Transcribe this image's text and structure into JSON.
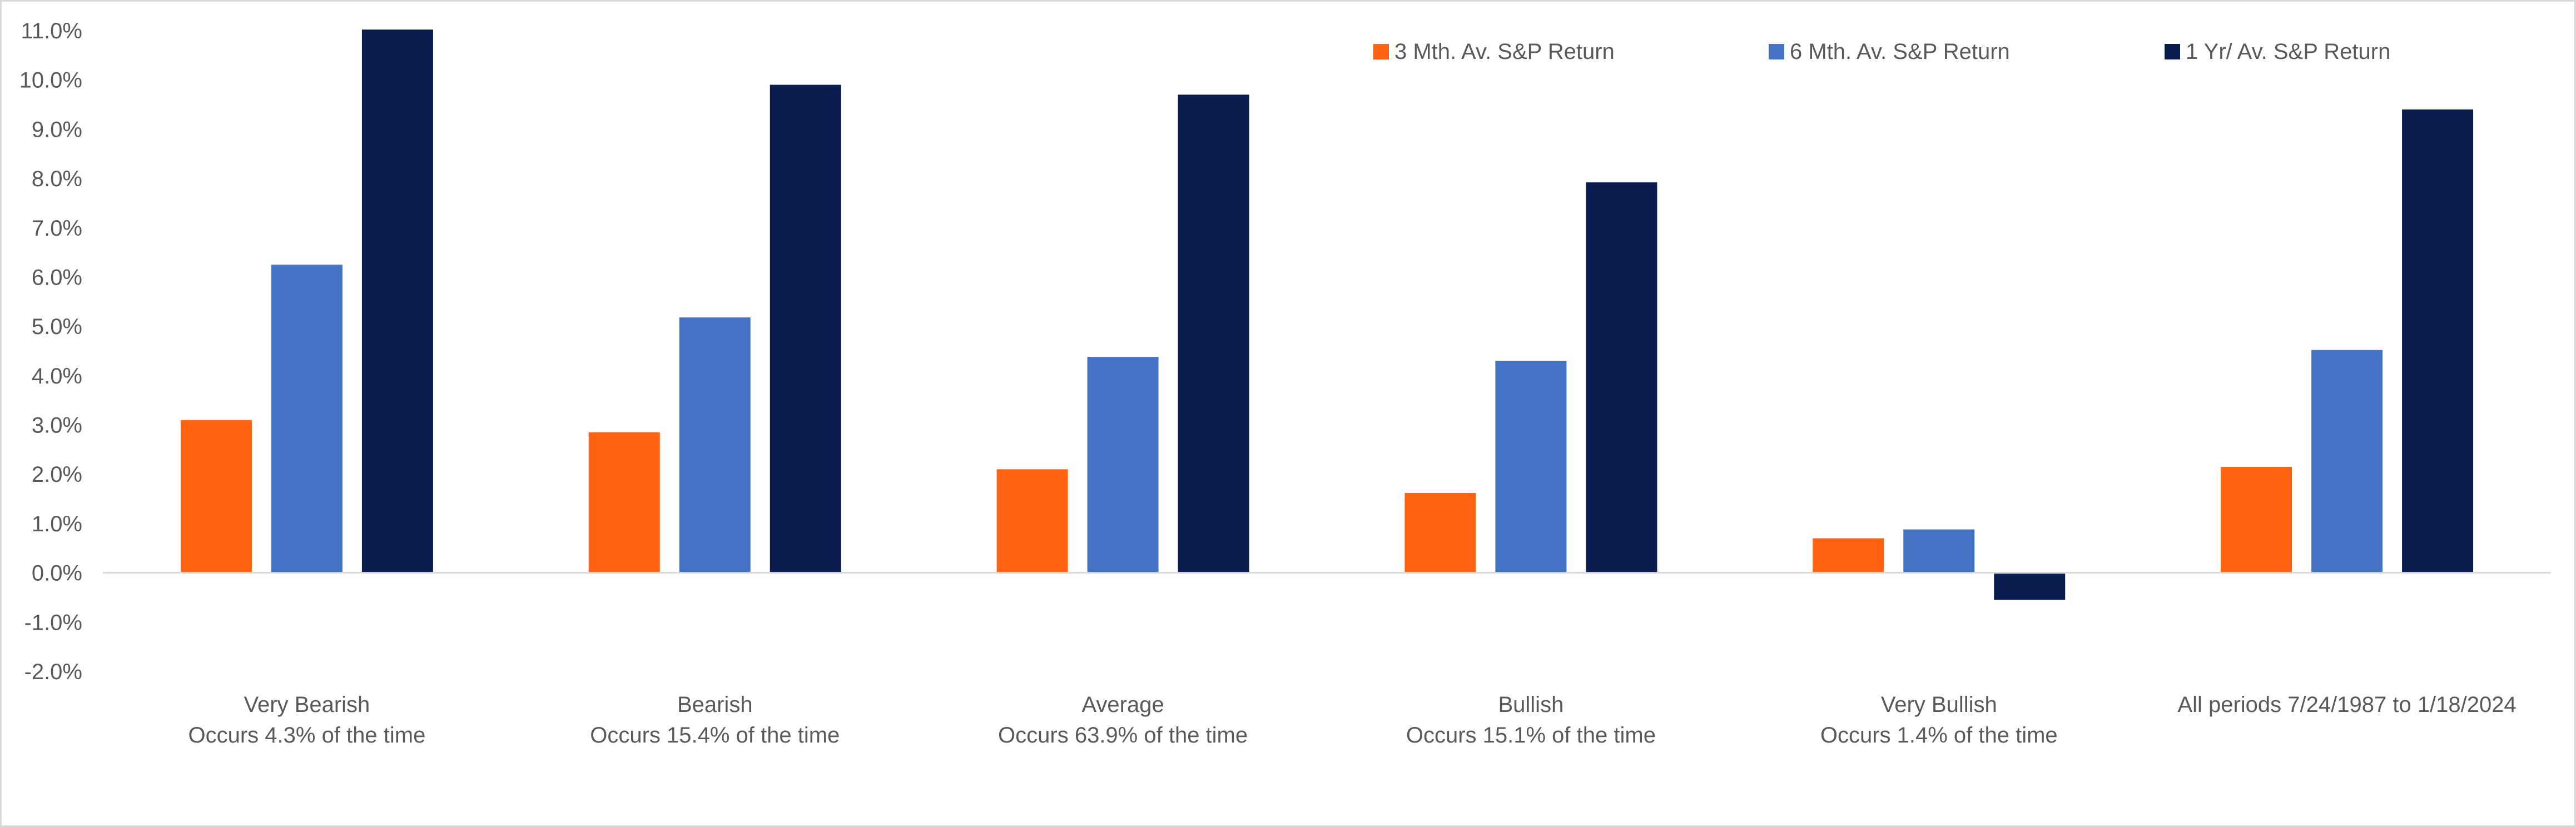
{
  "chart_data": {
    "type": "bar",
    "categories": [
      [
        "Very Bearish",
        "Occurs 4.3% of the time"
      ],
      [
        "Bearish",
        "Occurs 15.4% of the time"
      ],
      [
        "Average",
        "Occurs 63.9% of the time"
      ],
      [
        "Bullish",
        "Occurs 15.1% of the time"
      ],
      [
        "Very Bullish",
        "Occurs 1.4% of the time"
      ],
      [
        "All periods 7/24/1987 to 1/18/2024"
      ]
    ],
    "series": [
      {
        "name": "3 Mth. Av. S&P Return",
        "color": "#ff6210",
        "values": [
          3.1,
          2.85,
          2.1,
          1.62,
          0.7,
          2.15
        ]
      },
      {
        "name": "6 Mth. Av. S&P Return",
        "color": "#4472c4",
        "values": [
          6.25,
          5.18,
          4.38,
          4.3,
          0.88,
          4.52
        ]
      },
      {
        "name": "1 Yr/ Av. S&P Return",
        "color": "#0a1c4e",
        "values": [
          11.02,
          9.9,
          9.7,
          7.92,
          -0.55,
          9.4
        ]
      }
    ],
    "y_ticks": [
      11,
      10,
      9,
      8,
      7,
      6,
      5,
      4,
      3,
      2,
      1,
      0,
      -1,
      -2
    ],
    "tick_format": "percent_1dp",
    "ylim": [
      -2,
      11
    ],
    "grid": false,
    "legend_position": "top-right",
    "title": "",
    "xlabel": "",
    "ylabel": ""
  }
}
